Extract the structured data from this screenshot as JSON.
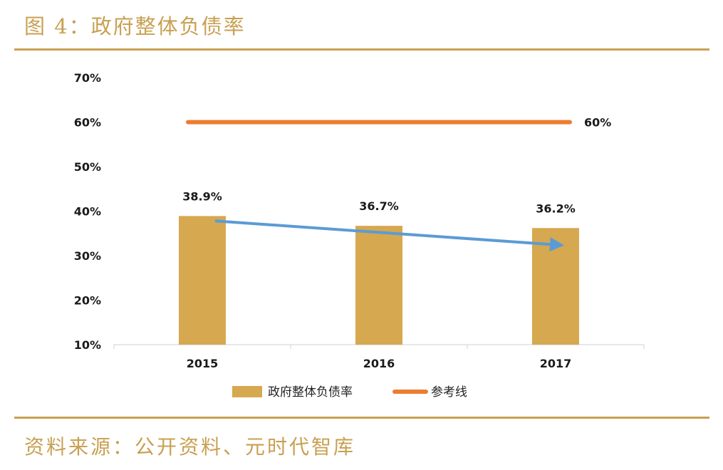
{
  "figure": {
    "title": "图 4：政府整体负债率",
    "source": "资料来源：公开资料、元时代智库"
  },
  "colors": {
    "accent": "#c8a052",
    "bar": "#d6a84f",
    "reference_line": "#ed7d31",
    "trend_arrow": "#5b9bd5"
  },
  "chart_data": {
    "type": "bar",
    "categories": [
      "2015",
      "2016",
      "2017"
    ],
    "series": [
      {
        "name": "政府整体负债率",
        "values": [
          38.9,
          36.7,
          36.2
        ]
      }
    ],
    "data_labels": [
      "38.9%",
      "36.7%",
      "36.2%"
    ],
    "reference_line": {
      "name": "参考线",
      "value": 60,
      "label": "60%"
    },
    "trend_arrow": {
      "from": "2015",
      "to": "2017",
      "direction": "down"
    },
    "yticks": [
      "10%",
      "20%",
      "30%",
      "40%",
      "50%",
      "60%",
      "70%"
    ],
    "ylim": [
      10,
      70
    ],
    "grid": false,
    "legend_position": "bottom",
    "legend": [
      "政府整体负债率",
      "参考线"
    ]
  }
}
